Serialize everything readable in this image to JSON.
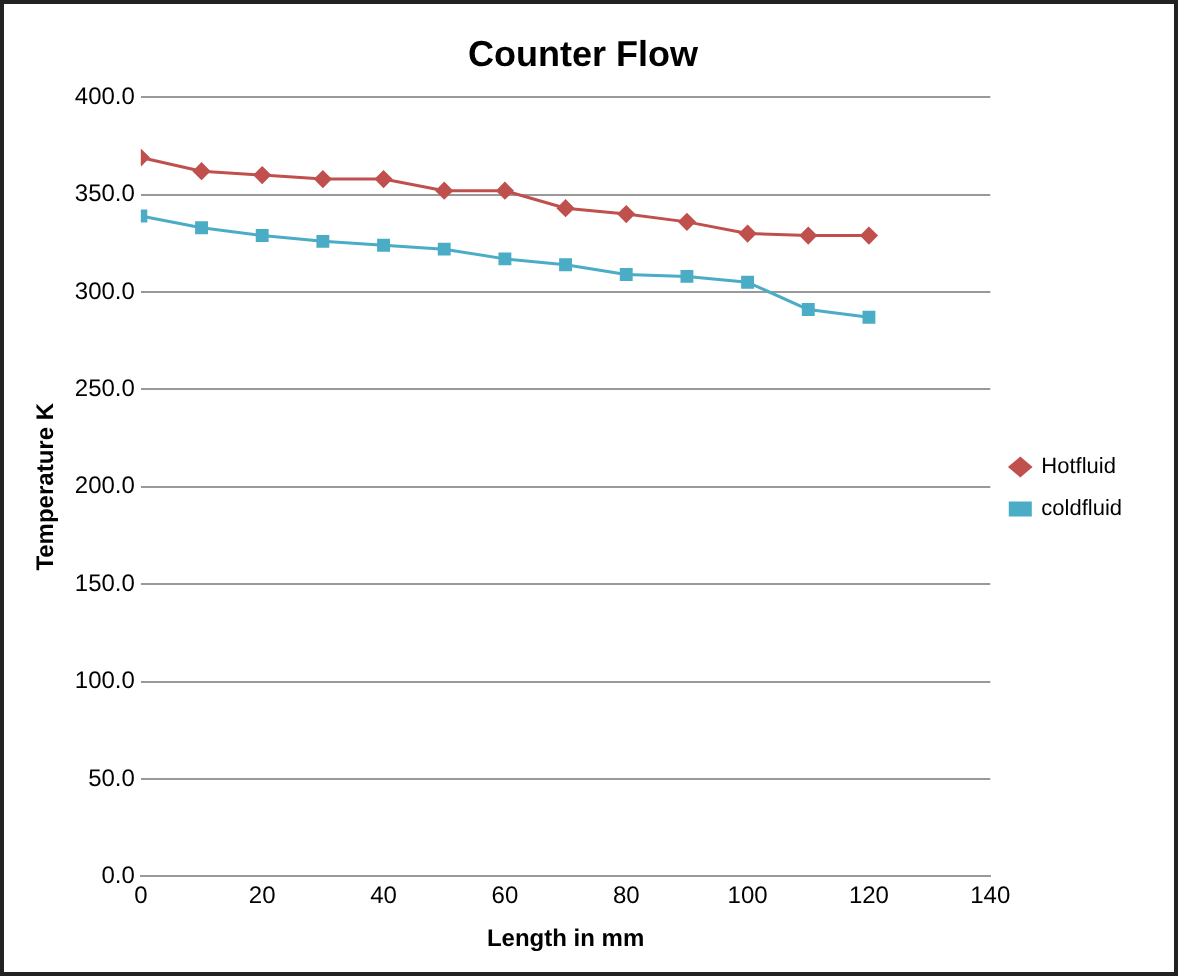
{
  "chart_data": {
    "type": "line",
    "title": "Counter Flow",
    "xlabel": "Length in mm",
    "ylabel": "Temperature K",
    "x": [
      0,
      10,
      20,
      30,
      40,
      50,
      60,
      70,
      80,
      90,
      100,
      110,
      120
    ],
    "series": [
      {
        "name": "Hotfluid",
        "color": "#c0504d",
        "marker": "diamond",
        "values": [
          369,
          362,
          360,
          358,
          358,
          352,
          352,
          343,
          340,
          336,
          330,
          329,
          329
        ]
      },
      {
        "name": "coldfluid",
        "color": "#4bacc6",
        "marker": "square",
        "values": [
          339,
          333,
          329,
          326,
          324,
          322,
          317,
          314,
          309,
          308,
          305,
          291,
          287
        ]
      }
    ],
    "xlim": [
      0,
      140
    ],
    "xticks": [
      0,
      20,
      40,
      60,
      80,
      100,
      120,
      140
    ],
    "ylim": [
      0,
      400
    ],
    "yticks": [
      {
        "value": 0,
        "label": "0.0"
      },
      {
        "value": 50,
        "label": "50.0"
      },
      {
        "value": 100,
        "label": "100.0"
      },
      {
        "value": 150,
        "label": "150.0"
      },
      {
        "value": 200,
        "label": "200.0"
      },
      {
        "value": 250,
        "label": "250.0"
      },
      {
        "value": 300,
        "label": "300.0"
      },
      {
        "value": 350,
        "label": "350.0"
      },
      {
        "value": 400,
        "label": "400.0"
      }
    ],
    "grid": "y",
    "legend": "right"
  }
}
